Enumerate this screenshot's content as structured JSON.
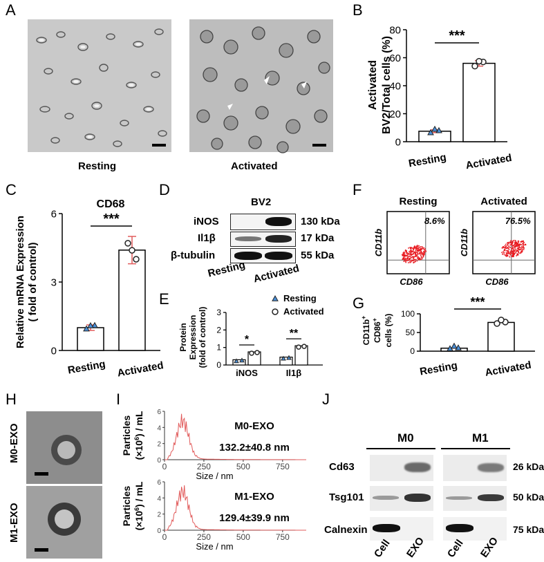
{
  "panels": {
    "A": {
      "letter": "A",
      "resting_label": "Resting",
      "activated_label": "Activated"
    },
    "B": {
      "letter": "B",
      "chart_data": {
        "type": "bar",
        "categories": [
          "Resting",
          "Activated"
        ],
        "values": [
          7.5,
          56
        ],
        "errors": [
          1.0,
          2.0
        ],
        "points": [
          [
            6.5,
            8,
            7.5
          ],
          [
            54,
            57,
            56
          ]
        ],
        "ylabel_line1": "Activated",
        "ylabel_line2": "BV2/Total cells (%)",
        "ylim": [
          0,
          80
        ],
        "yticks": [
          "0",
          "20",
          "40",
          "60",
          "80"
        ],
        "significance": "***"
      }
    },
    "C": {
      "letter": "C",
      "chart_data": {
        "type": "bar",
        "title": "CD68",
        "categories": [
          "Resting",
          "Activated"
        ],
        "values": [
          1.0,
          4.4
        ],
        "errors": [
          0.12,
          0.6
        ],
        "points": [
          [
            0.95,
            1.1,
            1.0
          ],
          [
            4.7,
            4.0,
            4.3
          ]
        ],
        "ylabel_line1": "Relative mRNA Expression",
        "ylabel_line2": "( fold of control)",
        "ylim": [
          0,
          6
        ],
        "yticks": [
          "0",
          "3",
          "6"
        ],
        "significance": "***"
      }
    },
    "D": {
      "letter": "D",
      "title": "BV2",
      "rows": [
        {
          "label": "iNOS",
          "size": "130 kDa"
        },
        {
          "label": "Il1β",
          "size": "17 kDa"
        },
        {
          "label": "β-tubulin",
          "size": "55 kDa"
        }
      ],
      "lanes": [
        "Resting",
        "Activated"
      ]
    },
    "E": {
      "letter": "E",
      "chart_data": {
        "type": "bar",
        "categories": [
          "iNOS",
          "Il1β"
        ],
        "series": [
          {
            "name": "Resting",
            "values": [
              0.3,
              0.45
            ]
          },
          {
            "name": "Activated",
            "values": [
              0.75,
              1.1
            ]
          }
        ],
        "ylabel_line1": "Protein",
        "ylabel_line2": "Expression",
        "ylabel_line3": "(fold of control)",
        "ylim": [
          0,
          3
        ],
        "yticks": [
          "0",
          "1",
          "2",
          "3"
        ],
        "significance": [
          "*",
          "**"
        ]
      }
    },
    "F": {
      "letter": "F",
      "plots": [
        {
          "title": "Resting",
          "percent": "8.6%"
        },
        {
          "title": "Activated",
          "percent": "76.5%"
        }
      ],
      "ylabel": "CD11b",
      "xlabel": "CD86"
    },
    "G": {
      "letter": "G",
      "chart_data": {
        "type": "bar",
        "categories": [
          "Resting",
          "Activated"
        ],
        "values": [
          8,
          77
        ],
        "points": [
          [
            7,
            9,
            8
          ],
          [
            74,
            78,
            78
          ]
        ],
        "ylabel_line1": "CD11b",
        "ylabel_line1_sup": "+",
        "ylabel_line2": "CD86",
        "ylabel_line2_sup": "+",
        "ylabel_line3": "cells (%)",
        "ylim": [
          0,
          100
        ],
        "yticks": [
          "0",
          "50",
          "100"
        ],
        "significance": "***"
      }
    },
    "H": {
      "letter": "H",
      "top_label": "M0-EXO",
      "bottom_label": "M1-EXO"
    },
    "I": {
      "letter": "I",
      "ylabel_line1": "Particles",
      "ylabel_line2": "(×10",
      "ylabel_sup": "6",
      "ylabel_line3": ") / mL",
      "xlabel": "Size / nm",
      "xticks": [
        "0",
        "250",
        "500",
        "750"
      ],
      "top": {
        "name": "M0-EXO",
        "size": "132.2±40.8 nm",
        "yticks": [
          "0",
          "2",
          "4",
          "6"
        ]
      },
      "bottom": {
        "name": "M1-EXO",
        "size": "129.4±39.9 nm",
        "yticks": [
          "0",
          "2",
          "4",
          "6"
        ]
      }
    },
    "J": {
      "letter": "J",
      "groups": [
        "M0",
        "M1"
      ],
      "rows": [
        {
          "label": "Cd63",
          "size": "26 kDa"
        },
        {
          "label": "Tsg101",
          "size": "50 kDa"
        },
        {
          "label": "Calnexin",
          "size": "75 kDa"
        }
      ],
      "lanes": [
        "Cell",
        "EXO",
        "Cell",
        "EXO"
      ]
    }
  },
  "colors": {
    "resting_marker": "#4a90d9",
    "activated_marker": "#e87b7b",
    "error_bar": "#e15a5a",
    "dot_plot": "#e8191f"
  }
}
